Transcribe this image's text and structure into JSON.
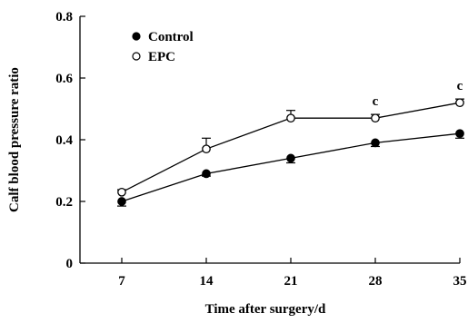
{
  "chart_data": {
    "type": "line",
    "xlabel": "Time after surgery/d",
    "ylabel": "Calf blood pressure ratio",
    "x": [
      7,
      14,
      21,
      28,
      35
    ],
    "x_tick_labels": [
      "7",
      "14",
      "21",
      "28",
      "35"
    ],
    "ylim": [
      0,
      0.8
    ],
    "y_ticks": [
      0,
      0.2,
      0.4,
      0.6,
      0.8
    ],
    "y_tick_labels": [
      "0",
      "0.2",
      "0.4",
      "0.6",
      "0.8"
    ],
    "grid": false,
    "legend_position": "top-left",
    "series": [
      {
        "name": "Control",
        "marker": "filled-circle",
        "values": [
          0.2,
          0.29,
          0.34,
          0.39,
          0.42
        ],
        "errors": [
          0.015,
          0.008,
          0.015,
          0.012,
          0.015
        ],
        "error_direction": "down"
      },
      {
        "name": "EPC",
        "marker": "open-circle",
        "values": [
          0.23,
          0.37,
          0.47,
          0.47,
          0.52
        ],
        "errors": [
          0.008,
          0.035,
          0.025,
          0.012,
          0.012
        ],
        "error_direction": "up"
      }
    ],
    "annotations": [
      {
        "x": 28,
        "text": "c",
        "series": "EPC"
      },
      {
        "x": 35,
        "text": "c",
        "series": "EPC"
      }
    ],
    "colors": {
      "line": "#000000",
      "background": "#ffffff"
    }
  }
}
